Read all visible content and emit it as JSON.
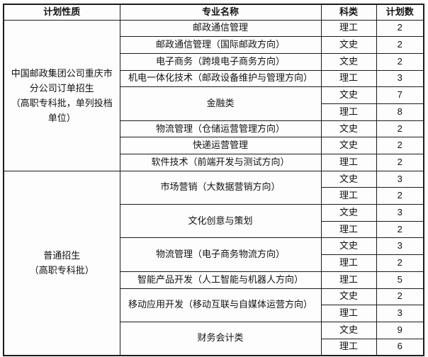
{
  "table": {
    "headers": [
      "计划性质",
      "专业名称",
      "科类",
      "计划数"
    ],
    "sections": [
      {
        "plan_type": "中国邮政集团公司重庆市分公司订单招生（高职专科批，单列投档单位）",
        "plan_type_lines": [
          "中国邮政集团公司重庆市",
          "分公司订单招生",
          "（高职专科批，单列投档",
          "单位）"
        ],
        "majors": [
          {
            "name": "邮政通信管理",
            "entries": [
              {
                "category": "理工",
                "count": "2"
              }
            ]
          },
          {
            "name": "邮政通信管理（国际邮政方向）",
            "entries": [
              {
                "category": "文史",
                "count": "2"
              }
            ]
          },
          {
            "name": "电子商务（跨境电子商务方向）",
            "entries": [
              {
                "category": "文史",
                "count": "2"
              }
            ]
          },
          {
            "name": "机电一体化技术（邮政设备维护与管理方向）",
            "entries": [
              {
                "category": "理工",
                "count": "3"
              }
            ]
          },
          {
            "name": "金融类",
            "entries": [
              {
                "category": "文史",
                "count": "7"
              },
              {
                "category": "理工",
                "count": "8"
              }
            ]
          },
          {
            "name": "物流管理（仓储运营管理方向）",
            "entries": [
              {
                "category": "文史",
                "count": "2"
              }
            ]
          },
          {
            "name": "快递运营管理",
            "entries": [
              {
                "category": "文史",
                "count": "2"
              }
            ]
          },
          {
            "name": "软件技术（前端开发与测试方向）",
            "entries": [
              {
                "category": "理工",
                "count": "2"
              }
            ]
          }
        ]
      },
      {
        "plan_type": "普通招生（高职专科批）",
        "plan_type_lines": [
          "普通招生",
          "（高职专科批）"
        ],
        "majors": [
          {
            "name": "市场营销（大数据营销方向）",
            "entries": [
              {
                "category": "文史",
                "count": "3"
              },
              {
                "category": "理工",
                "count": "2"
              }
            ]
          },
          {
            "name": "文化创意与策划",
            "entries": [
              {
                "category": "文史",
                "count": "3"
              },
              {
                "category": "理工",
                "count": "2"
              }
            ]
          },
          {
            "name": "物流管理（电子商务物流方向）",
            "entries": [
              {
                "category": "文史",
                "count": "3"
              },
              {
                "category": "理工",
                "count": "2"
              }
            ]
          },
          {
            "name": "智能产品开发（人工智能与机器人方向）",
            "entries": [
              {
                "category": "理工",
                "count": "5"
              }
            ]
          },
          {
            "name": "移动应用开发（移动互联与自媒体运营方向）",
            "entries": [
              {
                "category": "文史",
                "count": "2"
              },
              {
                "category": "理工",
                "count": "3"
              }
            ]
          },
          {
            "name": "财务会计类",
            "entries": [
              {
                "category": "文史",
                "count": "9"
              },
              {
                "category": "理工",
                "count": "6"
              }
            ]
          }
        ]
      }
    ],
    "colors": {
      "border": "#1b1b1b",
      "text": "#111111",
      "background": "#fdfdfd"
    }
  }
}
